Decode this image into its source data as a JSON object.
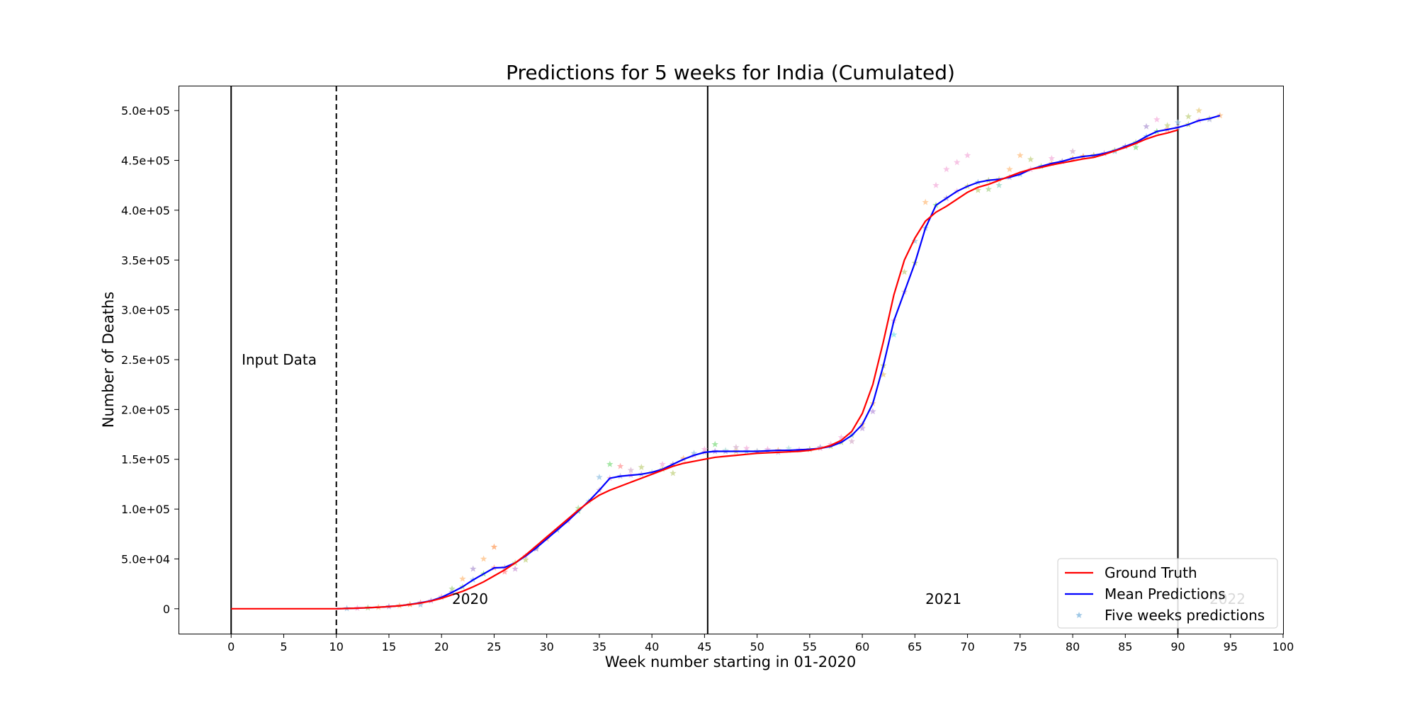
{
  "chart_data": {
    "type": "line",
    "title": "Predictions for 5 weeks for India (Cumulated)",
    "xlabel": "Week number starting in 01-2020",
    "ylabel": "Number of Deaths",
    "xlim": [
      -5,
      100
    ],
    "ylim": [
      -25000,
      525000
    ],
    "x_ticks": [
      0,
      5,
      10,
      15,
      20,
      25,
      30,
      35,
      40,
      45,
      50,
      55,
      60,
      65,
      70,
      75,
      80,
      85,
      90,
      95,
      100
    ],
    "x_tick_labels": [
      "0",
      "5",
      "10",
      "15",
      "20",
      "25",
      "30",
      "35",
      "40",
      "45",
      "50",
      "55",
      "60",
      "65",
      "70",
      "75",
      "80",
      "85",
      "90",
      "95",
      "100"
    ],
    "y_ticks": [
      0,
      50000,
      100000,
      150000,
      200000,
      250000,
      300000,
      350000,
      400000,
      450000,
      500000
    ],
    "y_tick_labels": [
      "0",
      "5.0e+04",
      "1.0e+05",
      "1.5e+05",
      "2.0e+05",
      "2.5e+05",
      "3.0e+05",
      "3.5e+05",
      "4.0e+05",
      "4.5e+05",
      "5.0e+05"
    ],
    "grid": false,
    "legend_position": "bottom-right",
    "vertical_lines": [
      {
        "x": 0,
        "style": "solid"
      },
      {
        "x": 10,
        "style": "dashed"
      },
      {
        "x": 45.3,
        "style": "solid"
      },
      {
        "x": 90,
        "style": "solid"
      }
    ],
    "annotations": [
      {
        "text": "Input Data",
        "x": 1,
        "y": 245000
      },
      {
        "text": "2020",
        "x": 21,
        "y": 5000
      },
      {
        "text": "2021",
        "x": 66,
        "y": 5000
      },
      {
        "text": "2022",
        "x": 93,
        "y": 5000
      }
    ],
    "series": [
      {
        "name": "Ground Truth",
        "kind": "line",
        "color": "#ff0000",
        "x": [
          0,
          2,
          4,
          6,
          8,
          10,
          11,
          12,
          13,
          14,
          15,
          16,
          17,
          18,
          19,
          20,
          21,
          22,
          23,
          24,
          25,
          26,
          27,
          28,
          29,
          30,
          31,
          32,
          33,
          34,
          35,
          36,
          37,
          38,
          39,
          40,
          41,
          42,
          43,
          44,
          45,
          46,
          47,
          48,
          49,
          50,
          51,
          52,
          53,
          54,
          55,
          56,
          57,
          58,
          59,
          60,
          61,
          62,
          63,
          64,
          65,
          66,
          67,
          68,
          69,
          70,
          71,
          72,
          73,
          74,
          75,
          76,
          77,
          78,
          79,
          80,
          81,
          82,
          83,
          84,
          85,
          86,
          87,
          88,
          89,
          90
        ],
        "y": [
          0,
          0,
          0,
          0,
          0,
          0,
          300,
          600,
          1000,
          1500,
          2200,
          3000,
          4200,
          5700,
          7700,
          10500,
          14000,
          17500,
          22000,
          27000,
          33000,
          39000,
          46000,
          54000,
          63000,
          72000,
          81000,
          90000,
          99000,
          107000,
          114000,
          119000,
          123000,
          127000,
          131000,
          135000,
          139000,
          143000,
          146000,
          148000,
          150000,
          152000,
          153000,
          154000,
          155000,
          156000,
          156500,
          157000,
          157500,
          158000,
          159000,
          161000,
          164000,
          169000,
          178000,
          196000,
          225000,
          268000,
          315000,
          350000,
          372000,
          389000,
          398000,
          404000,
          411000,
          418000,
          423000,
          426000,
          430000,
          434000,
          438000,
          441000,
          443000,
          445500,
          447500,
          449500,
          451500,
          453000,
          456000,
          459500,
          463000,
          467000,
          471500,
          475000,
          477500,
          480500
        ]
      },
      {
        "name": "Mean Predictions",
        "kind": "line",
        "color": "#0000ff",
        "x": [
          10,
          11,
          12,
          13,
          14,
          15,
          16,
          17,
          18,
          19,
          20,
          21,
          22,
          23,
          24,
          25,
          26,
          27,
          28,
          29,
          30,
          31,
          32,
          33,
          34,
          35,
          36,
          37,
          38,
          39,
          40,
          41,
          42,
          43,
          44,
          45,
          46,
          47,
          48,
          49,
          50,
          51,
          52,
          53,
          54,
          55,
          56,
          57,
          58,
          59,
          60,
          61,
          62,
          63,
          64,
          65,
          66,
          67,
          68,
          69,
          70,
          71,
          72,
          73,
          74,
          75,
          76,
          77,
          78,
          79,
          80,
          81,
          82,
          83,
          84,
          85,
          86,
          87,
          88,
          89,
          90,
          91,
          92,
          93,
          94
        ],
        "y": [
          0,
          300,
          600,
          1000,
          1500,
          2200,
          3000,
          4300,
          6000,
          8000,
          11500,
          16500,
          22000,
          29000,
          35000,
          41000,
          41500,
          46000,
          53000,
          61000,
          70000,
          79000,
          88000,
          98000,
          108000,
          119000,
          131000,
          133000,
          134000,
          135000,
          137000,
          140000,
          145000,
          150000,
          154000,
          157000,
          158000,
          158000,
          158000,
          158000,
          158000,
          158500,
          159000,
          159000,
          159500,
          160000,
          161000,
          163000,
          167000,
          174000,
          185000,
          206000,
          244000,
          289000,
          318000,
          347000,
          382000,
          405000,
          412000,
          419000,
          424000,
          428000,
          430000,
          431000,
          433000,
          436000,
          441000,
          444000,
          447000,
          449000,
          452000,
          454000,
          455000,
          457000,
          460000,
          464000,
          468000,
          474000,
          479000,
          481000,
          483000,
          486000,
          490000,
          492000,
          495000
        ]
      },
      {
        "name": "Five weeks predictions",
        "kind": "scatter",
        "color": "#9fc8e6",
        "x": [
          11,
          12,
          13,
          14,
          15,
          16,
          17,
          18,
          19,
          20,
          21,
          22,
          23,
          24,
          25,
          26,
          27,
          28,
          29,
          30,
          31,
          32,
          33,
          34,
          35,
          36,
          37,
          38,
          39,
          40,
          41,
          42,
          43,
          44,
          45,
          46,
          47,
          48,
          49,
          50,
          51,
          52,
          53,
          54,
          55,
          56,
          57,
          58,
          59,
          60,
          61,
          62,
          63,
          64,
          65,
          66,
          67,
          68,
          69,
          70,
          71,
          72,
          73,
          74,
          75,
          76,
          77,
          78,
          79,
          80,
          81,
          82,
          83,
          84,
          85,
          86,
          87,
          88,
          89,
          90,
          91,
          92,
          93,
          94
        ],
        "y": [
          300,
          600,
          1000,
          1500,
          2200,
          3000,
          4300,
          6000,
          8000,
          11500,
          16500,
          22000,
          29000,
          35000,
          41000,
          41500,
          46000,
          53000,
          61000,
          70000,
          79000,
          88000,
          98000,
          108000,
          119000,
          131000,
          133000,
          134000,
          135000,
          137000,
          140000,
          145000,
          150000,
          154000,
          157000,
          158000,
          158000,
          158000,
          158000,
          158000,
          158500,
          159000,
          159000,
          159500,
          160000,
          161000,
          163000,
          167000,
          174000,
          185000,
          206000,
          244000,
          289000,
          318000,
          347000,
          382000,
          405000,
          412000,
          419000,
          424000,
          428000,
          430000,
          431000,
          433000,
          436000,
          441000,
          444000,
          447000,
          449000,
          452000,
          454000,
          455000,
          457000,
          460000,
          464000,
          468000,
          474000,
          479000,
          481000,
          483000,
          486000,
          490000,
          492000,
          495000
        ]
      }
    ],
    "scatter_extra_points": {
      "x": [
        18,
        20,
        21,
        22,
        23,
        24,
        25,
        26,
        27,
        28,
        29,
        33,
        35,
        36,
        37,
        38,
        39,
        41,
        42,
        43,
        44,
        45,
        46,
        47,
        48,
        49,
        50,
        51,
        52,
        53,
        55,
        56,
        57,
        58,
        59,
        60,
        61,
        62,
        63,
        64,
        65,
        66,
        67,
        68,
        69,
        70,
        71,
        72,
        73,
        74,
        75,
        76,
        78,
        80,
        82,
        84,
        86,
        87,
        88,
        89,
        90,
        91,
        92,
        93
      ],
      "y": [
        4000,
        12000,
        20000,
        30000,
        40000,
        50000,
        62000,
        37000,
        40000,
        49000,
        60000,
        101000,
        132000,
        145000,
        143000,
        139000,
        142000,
        145000,
        136000,
        151000,
        156000,
        160000,
        165000,
        159000,
        162000,
        161000,
        158000,
        160000,
        157000,
        161000,
        160000,
        162000,
        165000,
        172000,
        168000,
        181000,
        198000,
        235000,
        275000,
        338000,
        369000,
        408000,
        425000,
        441000,
        448000,
        455000,
        420000,
        421000,
        425000,
        441000,
        455000,
        451000,
        452000,
        459000,
        455000,
        459000,
        463000,
        484000,
        491000,
        485000,
        488000,
        494000,
        500000,
        491000
      ],
      "colors": [
        "#9fc8e6",
        "#f5b7de",
        "#b4d89a",
        "#ffc48c",
        "#b9a4d8",
        "#ffc48c",
        "#ffa66b",
        "#ff9f9f",
        "#cfa0d8",
        "#c8d68d",
        "#b4a0d8",
        "#b4e0a0",
        "#9fc8e6",
        "#8fe08f",
        "#ff9f9f",
        "#d9b8d0",
        "#c8d68d",
        "#f5b7de",
        "#c8d68d",
        "#ffc48c",
        "#9fc8e6",
        "#f5b7de",
        "#8fe08f",
        "#c0e8e0",
        "#d9b8d0",
        "#f5b7de",
        "#c0c0e8",
        "#f5b7de",
        "#c0c0e8",
        "#c0e8e0",
        "#c8d68d",
        "#b9a4d8",
        "#f5b7de",
        "#f5b7de",
        "#d9b8d0",
        "#c0a0e0",
        "#c0a0e0",
        "#e8d08a",
        "#8fe8e8",
        "#c8d68d",
        "#9fc8e6",
        "#ffc48c",
        "#f5b7de",
        "#f5b7de",
        "#f5b7de",
        "#f5b7de",
        "#c8d68d",
        "#b4d89a",
        "#9fd8c8",
        "#ffc48c",
        "#ffc48c",
        "#c8d68d",
        "#f5b7de",
        "#d9b8d0",
        "#c8d68d",
        "#9fc8e6",
        "#8fe08f",
        "#b9a4d8",
        "#f5b7de",
        "#c8d68d",
        "#9fc8e6",
        "#c8d68d",
        "#e8d08a",
        "#c0c0e8"
      ]
    }
  }
}
